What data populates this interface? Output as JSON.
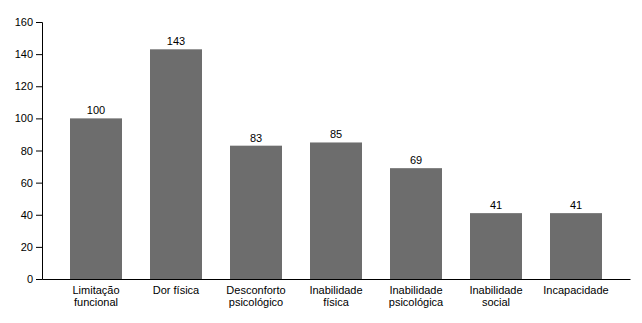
{
  "chart_data": {
    "type": "bar",
    "categories": [
      "Limitação\nfuncional",
      "Dor física",
      "Desconforto\npsicológico",
      "Inabilidade\nfísica",
      "Inabilidade\npsicológica",
      "Inabilidade\nsocial",
      "Incapacidade"
    ],
    "values": [
      100,
      143,
      83,
      85,
      69,
      41,
      41
    ],
    "color": "#6d6d6d",
    "ylim": [
      0,
      160
    ],
    "yticks": [
      0,
      20,
      40,
      60,
      80,
      100,
      120,
      140,
      160
    ],
    "grid": false,
    "data_labels": true
  }
}
